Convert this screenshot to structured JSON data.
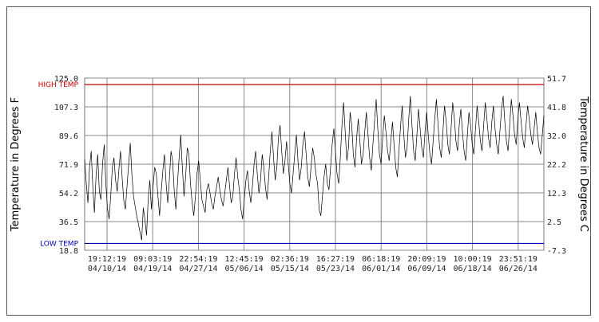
{
  "chart_data": {
    "type": "line",
    "ylabel_left": "Temperature in Degrees F",
    "ylabel_right": "Temperature in Degrees C",
    "ylim": [
      18.8,
      125.0
    ],
    "y_ticks_left": [
      "125.0",
      "107.3",
      "89.6",
      "71.9",
      "54.2",
      "36.5",
      "18.8"
    ],
    "y_ticks_right": [
      "51.7",
      "41.8",
      "32.0",
      "22.2",
      "12.3",
      "2.5",
      "-7.3"
    ],
    "x_ticks": [
      {
        "time": "19:12:19",
        "date": "04/10/14"
      },
      {
        "time": "09:03:19",
        "date": "04/19/14"
      },
      {
        "time": "22:54:19",
        "date": "04/27/14"
      },
      {
        "time": "12:45:19",
        "date": "05/06/14"
      },
      {
        "time": "02:36:19",
        "date": "05/15/14"
      },
      {
        "time": "16:27:19",
        "date": "05/23/14"
      },
      {
        "time": "06:18:19",
        "date": "06/01/14"
      },
      {
        "time": "20:09:19",
        "date": "06/09/14"
      },
      {
        "time": "10:00:19",
        "date": "06/18/14"
      },
      {
        "time": "23:51:19",
        "date": "06/26/14"
      }
    ],
    "reference_lines": [
      {
        "label": "HIGH TEMP",
        "value": 121.0,
        "color": "#cc0000"
      },
      {
        "label": "LOW TEMP",
        "value": 23.0,
        "color": "#0000bb"
      }
    ],
    "grid": true,
    "series": [
      {
        "color": "#000000",
        "values": [
          75,
          60,
          48,
          70,
          80,
          58,
          42,
          65,
          78,
          55,
          50,
          72,
          84,
          60,
          45,
          38,
          52,
          70,
          76,
          62,
          55,
          68,
          80,
          64,
          50,
          44,
          58,
          72,
          85,
          66,
          52,
          46,
          40,
          35,
          30,
          25,
          45,
          38,
          28,
          50,
          62,
          44,
          58,
          70,
          66,
          52,
          40,
          55,
          68,
          78,
          60,
          48,
          62,
          80,
          74,
          56,
          44,
          60,
          76,
          90,
          70,
          52,
          64,
          82,
          78,
          60,
          48,
          40,
          52,
          66,
          74,
          62,
          50,
          46,
          42,
          56,
          60,
          54,
          48,
          44,
          52,
          58,
          64,
          56,
          50,
          46,
          54,
          62,
          70,
          58,
          48,
          52,
          66,
          76,
          64,
          56,
          44,
          38,
          50,
          62,
          68,
          56,
          48,
          58,
          72,
          80,
          66,
          54,
          62,
          78,
          70,
          58,
          50,
          64,
          80,
          92,
          76,
          62,
          70,
          88,
          96,
          80,
          66,
          74,
          86,
          72,
          60,
          54,
          66,
          78,
          90,
          74,
          62,
          70,
          84,
          92,
          78,
          64,
          58,
          70,
          82,
          76,
          66,
          60,
          44,
          40,
          52,
          64,
          72,
          60,
          56,
          70,
          84,
          94,
          80,
          66,
          60,
          76,
          96,
          110,
          92,
          74,
          82,
          104,
          96,
          78,
          70,
          88,
          100,
          86,
          72,
          78,
          92,
          104,
          90,
          76,
          68,
          84,
          98,
          112,
          94,
          78,
          72,
          88,
          102,
          92,
          80,
          74,
          86,
          98,
          84,
          70,
          64,
          80,
          96,
          108,
          90,
          76,
          82,
          100,
          114,
          96,
          80,
          74,
          90,
          106,
          94,
          82,
          76,
          92,
          104,
          90,
          78,
          72,
          86,
          100,
          112,
          96,
          82,
          76,
          92,
          108,
          98,
          84,
          78,
          94,
          110,
          100,
          86,
          80,
          96,
          106,
          92,
          80,
          74,
          90,
          104,
          96,
          84,
          78,
          94,
          108,
          98,
          86,
          80,
          96,
          110,
          100,
          88,
          82,
          98,
          108,
          94,
          84,
          78,
          92,
          106,
          114,
          98,
          86,
          80,
          96,
          112,
          102,
          90,
          84,
          100,
          110,
          98,
          88,
          82,
          96,
          108,
          100,
          90,
          84,
          94,
          104,
          92,
          82,
          78,
          90,
          102
        ]
      }
    ]
  }
}
